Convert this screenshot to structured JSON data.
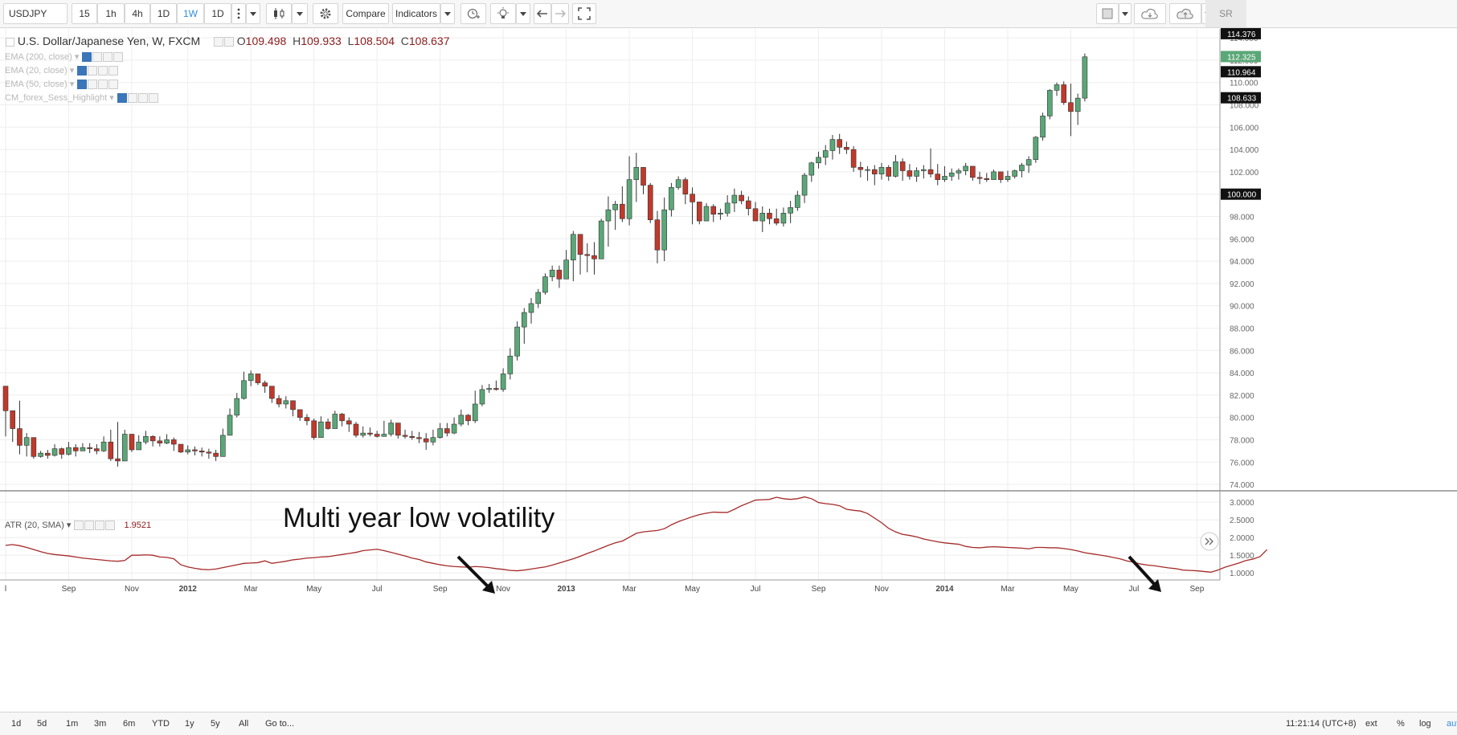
{
  "toolbar": {
    "symbol": "USDJPY",
    "intervals": [
      "15",
      "1h",
      "4h",
      "1D",
      "1W",
      "1D"
    ],
    "active_interval": "1W",
    "compare_label": "Compare",
    "indicators_label": "Indicators",
    "user_label": "SR"
  },
  "legend": {
    "title": "U.S. Dollar/Japanese Yen, W, FXCM",
    "open_label": "O",
    "open": "109.498",
    "high_label": "H",
    "high": "109.933",
    "low_label": "L",
    "low": "108.504",
    "close_label": "C",
    "close": "108.637"
  },
  "indicators": [
    {
      "label": "EMA (200, close)"
    },
    {
      "label": "EMA (20, close)"
    },
    {
      "label": "EMA (50, close)"
    },
    {
      "label": "CM_forex_Sess_Highlight"
    }
  ],
  "atr_legend": {
    "label": "ATR (20, SMA)",
    "value": "1.9521"
  },
  "annotation": "Multi year low volatility",
  "bottombar": {
    "ranges": [
      "1d",
      "5d",
      "1m",
      "3m",
      "6m",
      "YTD",
      "1y",
      "5y",
      "All"
    ],
    "goto_label": "Go to...",
    "time": "11:21:14 (UTC+8)",
    "ext_label": "ext",
    "pct_label": "%",
    "log_label": "log",
    "auto_label": "auto"
  },
  "colors": {
    "up": "#5aa777",
    "down": "#c0392b",
    "atr_line": "#a52a2a",
    "grid": "#eeeeee",
    "axis": "#666666"
  },
  "chart_data": [
    {
      "type": "candlestick",
      "title": "U.S. Dollar/Japanese Yen, W, FXCM",
      "ylim": [
        73.5,
        114.8
      ],
      "y_ticks": [
        "74.000",
        "76.000",
        "78.000",
        "80.000",
        "82.000",
        "84.000",
        "86.000",
        "88.000",
        "90.000",
        "92.000",
        "94.000",
        "96.000",
        "98.000",
        "100.000",
        "102.000",
        "104.000",
        "106.000",
        "108.000",
        "110.000",
        "112.000",
        "114.000"
      ],
      "price_tags": [
        {
          "text": "114.376",
          "value": 114.376,
          "style": "dark"
        },
        {
          "text": "112.325",
          "value": 112.325,
          "style": "green"
        },
        {
          "text": "110.964",
          "value": 110.964,
          "style": "dark"
        },
        {
          "text": "108.633",
          "value": 108.633,
          "style": "dark"
        },
        {
          "text": "100.000",
          "value": 100.0,
          "style": "dark"
        }
      ],
      "x_labels": [
        {
          "text": "l",
          "i": 0
        },
        {
          "text": "Sep",
          "i": 9
        },
        {
          "text": "Nov",
          "i": 18
        },
        {
          "text": "2012",
          "i": 26
        },
        {
          "text": "Mar",
          "i": 35
        },
        {
          "text": "May",
          "i": 44
        },
        {
          "text": "Jul",
          "i": 53
        },
        {
          "text": "Sep",
          "i": 62
        },
        {
          "text": "Nov",
          "i": 71
        },
        {
          "text": "2013",
          "i": 80
        },
        {
          "text": "Mar",
          "i": 89
        },
        {
          "text": "May",
          "i": 98
        },
        {
          "text": "Jul",
          "i": 107
        },
        {
          "text": "Sep",
          "i": 116
        },
        {
          "text": "Nov",
          "i": 125
        },
        {
          "text": "2014",
          "i": 134
        },
        {
          "text": "Mar",
          "i": 143
        },
        {
          "text": "May",
          "i": 152
        },
        {
          "text": "Jul",
          "i": 161
        },
        {
          "text": "Sep",
          "i": 170
        }
      ],
      "closes": [
        80.6,
        79.0,
        77.5,
        78.2,
        76.5,
        76.8,
        76.6,
        77.2,
        76.7,
        77.3,
        77.0,
        77.3,
        77.2,
        77.0,
        77.8,
        76.3,
        76.1,
        78.5,
        77.1,
        77.8,
        78.3,
        77.9,
        77.7,
        78.0,
        77.6,
        76.9,
        77.1,
        77.0,
        76.9,
        76.8,
        76.5,
        78.4,
        80.2,
        81.7,
        83.3,
        83.9,
        83.1,
        82.8,
        81.7,
        81.2,
        81.5,
        80.7,
        80.0,
        79.7,
        78.2,
        79.6,
        79.0,
        80.3,
        79.7,
        79.4,
        78.4,
        78.6,
        78.5,
        78.3,
        78.5,
        79.5,
        78.4,
        78.3,
        78.2,
        78.1,
        77.8,
        78.2,
        79.0,
        78.6,
        79.4,
        80.2,
        79.7,
        81.2,
        82.5,
        82.6,
        82.5,
        83.9,
        85.5,
        88.1,
        89.4,
        90.2,
        91.2,
        92.6,
        93.2,
        92.4,
        94.1,
        96.4,
        94.6,
        94.5,
        94.2,
        97.6,
        98.6,
        99.1,
        97.8,
        101.3,
        102.4,
        100.8,
        97.7,
        95.0,
        98.6,
        100.6,
        101.3,
        100.0,
        99.3,
        97.6,
        98.9,
        98.2,
        98.3,
        99.2,
        99.9,
        99.4,
        98.7,
        97.6,
        98.3,
        97.8,
        97.4,
        98.3,
        98.8,
        99.9,
        101.7,
        102.8,
        103.3,
        103.9,
        104.9,
        104.2,
        104.0,
        102.4,
        102.2,
        102.2,
        101.8,
        102.4,
        101.6,
        102.9,
        102.1,
        101.6,
        102.1,
        102.2,
        101.8,
        101.3,
        101.6,
        101.9,
        102.1,
        102.5,
        101.5,
        101.4,
        101.3,
        102.0,
        101.3,
        101.6,
        102.1,
        102.6,
        103.1,
        105.1,
        107.0,
        109.3,
        109.8,
        108.2,
        107.4,
        108.6,
        112.3
      ],
      "highs": [
        80.9,
        79.5,
        81.5,
        78.6,
        77.2,
        77.0,
        77.1,
        77.6,
        77.3,
        77.8,
        77.6,
        77.7,
        77.7,
        77.6,
        78.3,
        78.9,
        79.6,
        78.9,
        78.4,
        78.4,
        78.8,
        78.4,
        78.3,
        78.5,
        78.2,
        77.5,
        77.5,
        77.4,
        77.3,
        77.2,
        77.1,
        79.0,
        80.8,
        82.2,
        84.1,
        84.2,
        83.8,
        83.3,
        82.5,
        82.0,
        81.9,
        81.3,
        80.6,
        80.3,
        79.9,
        80.1,
        79.9,
        80.6,
        80.4,
        80.0,
        79.6,
        79.2,
        79.1,
        78.8,
        79.7,
        79.8,
        79.4,
        78.9,
        78.8,
        78.7,
        78.6,
        78.9,
        79.5,
        79.5,
        80.0,
        80.7,
        80.3,
        82.4,
        82.9,
        83.0,
        83.3,
        84.4,
        86.2,
        88.6,
        89.8,
        90.7,
        91.5,
        92.9,
        93.6,
        93.6,
        95.0,
        96.7,
        95.9,
        95.6,
        95.7,
        97.8,
        99.8,
        99.4,
        100.7,
        103.4,
        103.7,
        101.6,
        101.0,
        98.5,
        99.7,
        101.0,
        101.6,
        101.5,
        100.6,
        99.3,
        99.2,
        99.1,
        98.7,
        99.9,
        100.5,
        100.3,
        99.8,
        99.3,
        98.9,
        98.7,
        98.7,
        98.8,
        99.4,
        100.3,
        101.9,
        102.9,
        103.8,
        104.4,
        105.3,
        105.4,
        104.7,
        104.3,
        102.9,
        102.5,
        102.6,
        102.8,
        102.6,
        103.5,
        103.2,
        102.7,
        102.4,
        102.6,
        104.1,
        102.7,
        102.5,
        102.3,
        102.3,
        102.8,
        102.5,
        102.0,
        101.9,
        102.2,
        102.0,
        102.1,
        102.2,
        102.8,
        103.4,
        105.2,
        107.3,
        109.4,
        110.0,
        110.1,
        109.9,
        109.0,
        112.6
      ],
      "lows": [
        78.3,
        77.8,
        76.7,
        76.5,
        76.3,
        76.4,
        76.3,
        76.5,
        76.3,
        76.6,
        76.5,
        77.0,
        76.8,
        76.7,
        76.9,
        76.1,
        75.6,
        77.1,
        76.9,
        77.1,
        77.6,
        77.4,
        77.4,
        77.6,
        77.0,
        76.8,
        76.7,
        76.6,
        76.5,
        76.3,
        76.1,
        76.5,
        78.4,
        80.0,
        81.6,
        82.8,
        82.9,
        82.2,
        81.3,
        80.9,
        80.8,
        80.1,
        79.7,
        79.3,
        78.0,
        78.3,
        78.9,
        79.1,
        79.2,
        78.7,
        78.2,
        78.2,
        78.3,
        78.2,
        78.4,
        78.3,
        78.1,
        78.1,
        78.0,
        77.7,
        77.1,
        77.5,
        78.1,
        78.3,
        78.5,
        79.2,
        79.3,
        79.5,
        81.0,
        82.2,
        82.4,
        82.3,
        83.4,
        85.1,
        86.6,
        88.4,
        89.8,
        91.0,
        92.2,
        91.6,
        92.4,
        92.2,
        92.8,
        93.0,
        92.8,
        94.4,
        95.3,
        96.8,
        97.5,
        97.2,
        99.3,
        100.0,
        97.4,
        93.8,
        94.0,
        98.0,
        100.4,
        99.1,
        97.3,
        97.3,
        97.6,
        97.5,
        97.7,
        98.0,
        98.4,
        99.1,
        98.1,
        97.6,
        96.6,
        97.3,
        97.2,
        97.1,
        97.4,
        98.5,
        99.2,
        101.1,
        102.3,
        102.6,
        103.1,
        103.6,
        103.6,
        102.0,
        101.5,
        101.2,
        100.8,
        101.3,
        101.2,
        101.5,
        101.2,
        101.3,
        101.1,
        101.4,
        101.5,
        100.8,
        101.1,
        101.2,
        101.3,
        101.7,
        101.2,
        100.9,
        101.1,
        101.3,
        101.0,
        101.1,
        101.4,
        101.5,
        101.9,
        102.8,
        104.8,
        106.7,
        108.8,
        108.0,
        105.2,
        106.2,
        108.3
      ]
    },
    {
      "type": "line",
      "title": "ATR (20, SMA)",
      "ylim": [
        0.8,
        3.3
      ],
      "y_ticks": [
        "1.0000",
        "1.5000",
        "2.0000",
        "2.5000",
        "3.0000"
      ],
      "values": [
        1.78,
        1.8,
        1.77,
        1.72,
        1.66,
        1.6,
        1.55,
        1.52,
        1.5,
        1.48,
        1.45,
        1.42,
        1.4,
        1.38,
        1.36,
        1.34,
        1.33,
        1.35,
        1.5,
        1.5,
        1.51,
        1.5,
        1.45,
        1.44,
        1.4,
        1.23,
        1.17,
        1.13,
        1.1,
        1.09,
        1.11,
        1.15,
        1.19,
        1.23,
        1.27,
        1.28,
        1.29,
        1.34,
        1.27,
        1.3,
        1.33,
        1.37,
        1.39,
        1.42,
        1.43,
        1.45,
        1.46,
        1.49,
        1.52,
        1.55,
        1.58,
        1.63,
        1.65,
        1.67,
        1.63,
        1.58,
        1.53,
        1.48,
        1.42,
        1.38,
        1.31,
        1.27,
        1.23,
        1.2,
        1.18,
        1.17,
        1.16,
        1.18,
        1.17,
        1.15,
        1.12,
        1.1,
        1.07,
        1.06,
        1.08,
        1.11,
        1.14,
        1.17,
        1.22,
        1.28,
        1.34,
        1.4,
        1.47,
        1.55,
        1.62,
        1.7,
        1.78,
        1.85,
        1.9,
        2.01,
        2.12,
        2.16,
        2.18,
        2.2,
        2.25,
        2.36,
        2.45,
        2.52,
        2.59,
        2.65,
        2.69,
        2.72,
        2.71,
        2.71,
        2.8,
        2.9,
        2.98,
        3.06,
        3.07,
        3.08,
        3.14,
        3.1,
        3.08,
        3.1,
        3.15,
        3.1,
        2.99,
        2.96,
        2.94,
        2.9,
        2.8,
        2.77,
        2.75,
        2.68,
        2.55,
        2.42,
        2.26,
        2.16,
        2.09,
        2.06,
        2.02,
        1.96,
        1.92,
        1.88,
        1.85,
        1.83,
        1.81,
        1.75,
        1.72,
        1.71,
        1.73,
        1.74,
        1.73,
        1.72,
        1.71,
        1.7,
        1.68,
        1.72,
        1.72,
        1.71,
        1.71,
        1.69,
        1.66,
        1.62,
        1.57,
        1.54,
        1.51,
        1.48,
        1.44,
        1.4,
        1.34,
        1.3,
        1.25,
        1.22,
        1.2,
        1.17,
        1.14,
        1.12,
        1.08,
        1.07,
        1.06,
        1.04,
        1.02,
        1.08,
        1.16,
        1.22,
        1.28,
        1.35,
        1.39,
        1.46,
        1.66
      ]
    }
  ]
}
